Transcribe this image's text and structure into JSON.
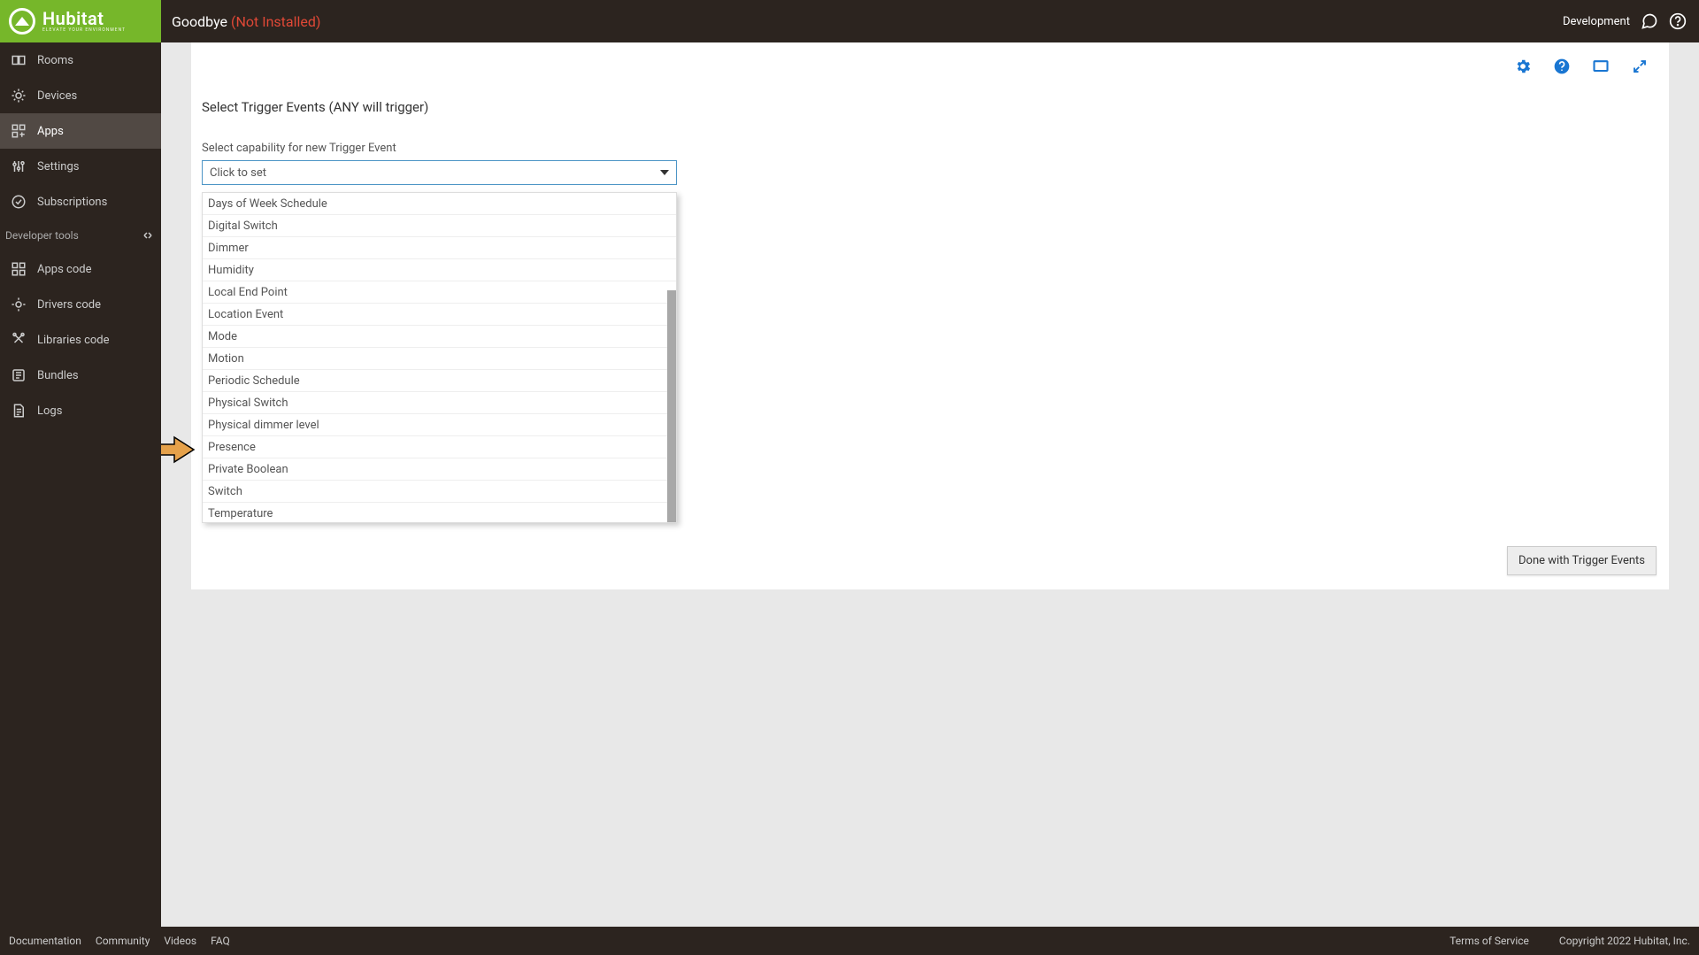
{
  "brand": {
    "name": "Hubitat",
    "tagline": "ELEVATE YOUR ENVIRONMENT",
    "logo_bg": "#76b72a"
  },
  "topbar": {
    "title": "Goodbye",
    "status": "(Not Installed)",
    "status_color": "#e04836",
    "right_label": "Development"
  },
  "sidebar": {
    "items": [
      {
        "label": "Rooms",
        "icon": "rooms-icon",
        "active": false
      },
      {
        "label": "Devices",
        "icon": "devices-icon",
        "active": false
      },
      {
        "label": "Apps",
        "icon": "apps-icon",
        "active": true
      },
      {
        "label": "Settings",
        "icon": "settings-icon",
        "active": false
      },
      {
        "label": "Subscriptions",
        "icon": "subscriptions-icon",
        "active": false
      }
    ],
    "dev_section_label": "Developer tools",
    "dev_items": [
      {
        "label": "Apps code",
        "icon": "apps-code-icon"
      },
      {
        "label": "Drivers code",
        "icon": "drivers-code-icon"
      },
      {
        "label": "Libraries code",
        "icon": "libraries-code-icon"
      },
      {
        "label": "Bundles",
        "icon": "bundles-icon"
      },
      {
        "label": "Logs",
        "icon": "logs-icon"
      }
    ]
  },
  "panel": {
    "action_color": "#1976d2",
    "section_title": "Select Trigger Events (ANY will trigger)",
    "field_label": "Select capability for new Trigger Event",
    "select_placeholder": "Click to set",
    "dropdown_items": [
      "Days of Week Schedule",
      "Digital Switch",
      "Dimmer",
      "Humidity",
      "Local End Point",
      "Location Event",
      "Mode",
      "Motion",
      "Periodic Schedule",
      "Physical Switch",
      "Physical dimmer level",
      "Presence",
      "Private Boolean",
      "Switch",
      "Temperature"
    ],
    "highlighted_item": "Switch",
    "arrow_color": "#e5a14a",
    "done_button": "Done with Trigger Events"
  },
  "footer": {
    "links": [
      "Documentation",
      "Community",
      "Videos",
      "FAQ"
    ],
    "terms": "Terms of Service",
    "copyright": "Copyright 2022 Hubitat, Inc."
  },
  "colors": {
    "bg_dark": "#2c241f",
    "sidebar_active": "#514944",
    "content_bg": "#e8e8e8",
    "panel_bg": "#ffffff",
    "select_border": "#4d95c6"
  }
}
